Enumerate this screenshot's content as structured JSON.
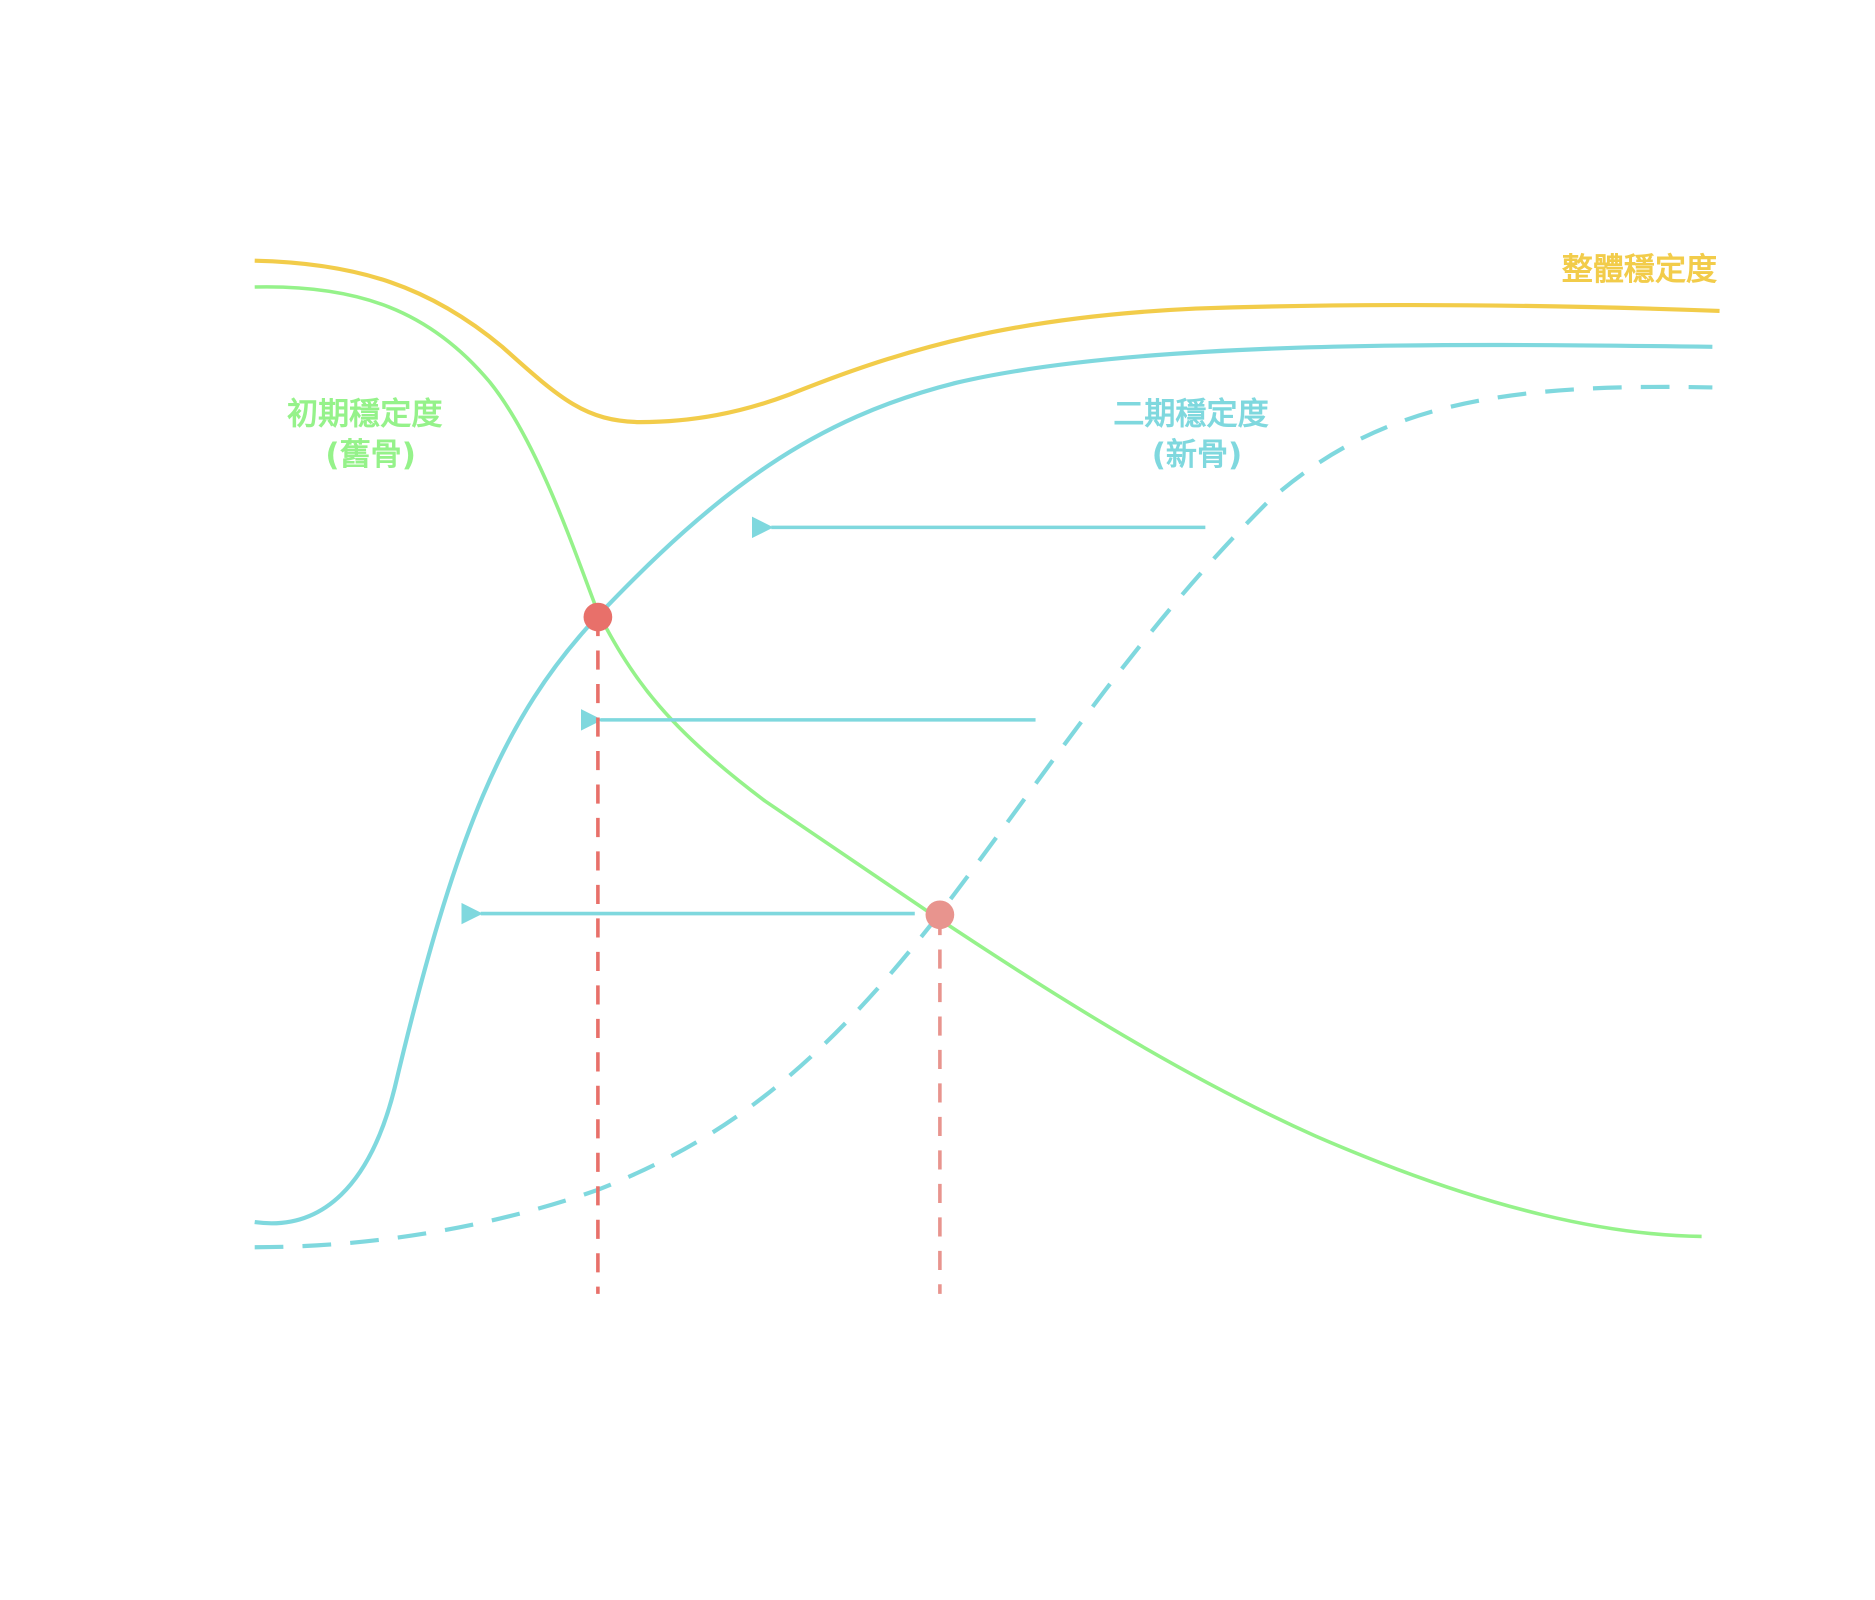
{
  "labels": {
    "overall": "整體穩定度",
    "primary_line1": "初期穩定度",
    "primary_line2": "(舊骨)",
    "secondary_line1": "二期穩定度",
    "secondary_line2": "(新骨)"
  },
  "colors": {
    "overall": "#f2cc4a",
    "primary": "#95f28a",
    "secondary": "#7fd8de",
    "marker": "#e8706a",
    "marker_light": "#e8948e"
  }
}
